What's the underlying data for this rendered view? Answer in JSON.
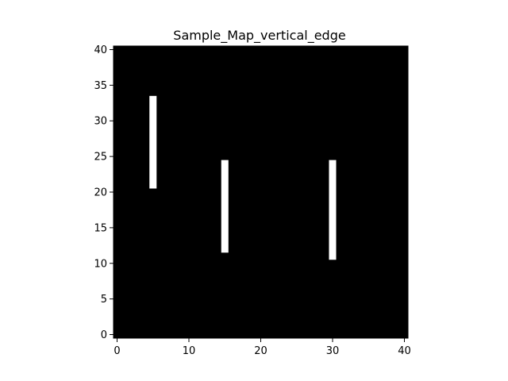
{
  "chart_data": {
    "type": "heatmap",
    "title": "Sample_Map_vertical_edge",
    "xlabel": "",
    "ylabel": "",
    "xlim": [
      -0.5,
      40.5
    ],
    "ylim": [
      -0.5,
      40.5
    ],
    "xticks": [
      0,
      10,
      20,
      30,
      40
    ],
    "yticks": [
      0,
      5,
      10,
      15,
      20,
      25,
      30,
      35,
      40
    ],
    "colormap": {
      "background": "#000000",
      "foreground": "#ffffff"
    },
    "background_value": 0,
    "segments": [
      {
        "x": 5,
        "y_start": 21,
        "y_end": 33,
        "value": 1
      },
      {
        "x": 15,
        "y_start": 12,
        "y_end": 24,
        "value": 1
      },
      {
        "x": 30,
        "y_start": 11,
        "y_end": 24,
        "value": 1
      }
    ],
    "grid": false,
    "legend": "none"
  }
}
